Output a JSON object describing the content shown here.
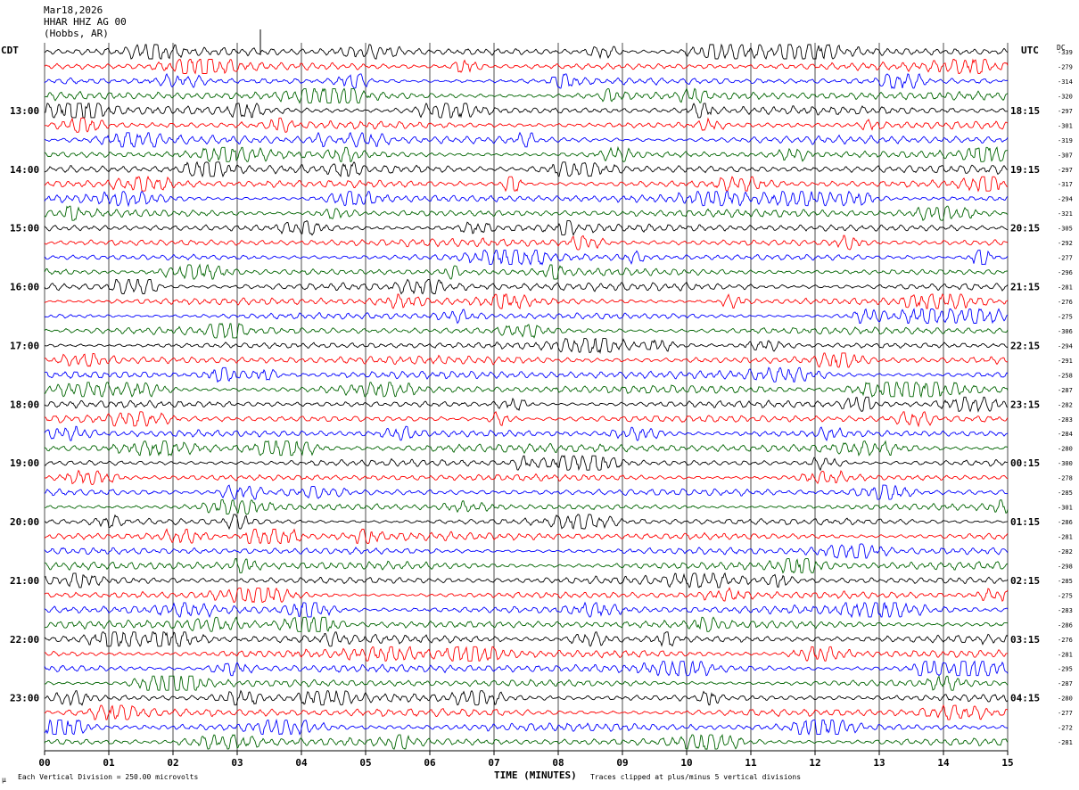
{
  "header": {
    "date": "Mar18,2026",
    "station": "HHAR HHZ AG 00",
    "location": "(Hobbs, AR)"
  },
  "left_tz": "CDT",
  "right_tz": "UTC",
  "dc_label": "DC",
  "footer": {
    "scale_note": "Each Vertical Division =  250.00 microvolts",
    "clip_note": "Traces clipped at plus/minus 5 vertical divisions",
    "corner_mark": "µ"
  },
  "colors": {
    "black": "#000000",
    "red": "#ff0000",
    "blue": "#0000ff",
    "green": "#006400",
    "grid": "#000000"
  },
  "icons": [
    "seismogram-trace"
  ],
  "chart_data": {
    "type": "line",
    "title": "",
    "xlabel": "TIME (MINUTES)",
    "ylabel": "",
    "x_ticks": [
      "00",
      "01",
      "02",
      "03",
      "04",
      "05",
      "06",
      "07",
      "08",
      "09",
      "10",
      "11",
      "12",
      "13",
      "14",
      "15"
    ],
    "xlim": [
      0,
      15
    ],
    "trace_colors_cycle": [
      "black",
      "red",
      "blue",
      "green"
    ],
    "left_hour_labels": [
      "13:00",
      "14:00",
      "15:00",
      "16:00",
      "17:00",
      "18:00",
      "19:00",
      "20:00",
      "21:00",
      "22:00",
      "23:00"
    ],
    "right_hour_labels": [
      "18:15",
      "19:15",
      "20:15",
      "21:15",
      "22:15",
      "23:15",
      "00:15",
      "01:15",
      "02:15",
      "03:15",
      "04:15"
    ],
    "dc_offsets": [
      -339,
      -279,
      -314,
      -320,
      -297,
      -301,
      -319,
      -307,
      -297,
      -317,
      -294,
      -321,
      -305,
      -292,
      -277,
      -296,
      -281,
      -276,
      -275,
      -306,
      -294,
      -291,
      -258,
      -287,
      -282,
      -283,
      -284,
      -280,
      -300,
      -278,
      -285,
      -301,
      -286,
      -281,
      -282,
      -298,
      -285,
      -275,
      -283,
      -286,
      -276,
      -281,
      -295,
      -287,
      -280,
      -277,
      -272,
      -281
    ]
  }
}
